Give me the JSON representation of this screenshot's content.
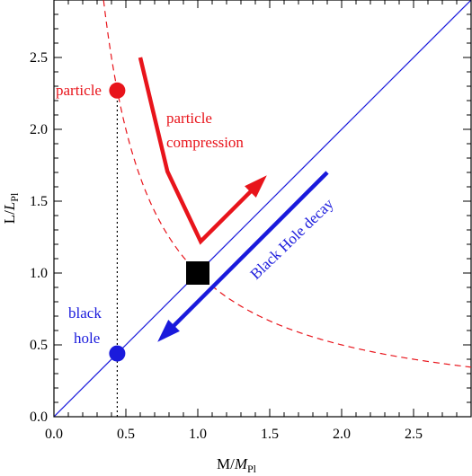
{
  "chart_data": {
    "type": "line",
    "title": "",
    "xlabel": {
      "main": "M/",
      "italic": "M",
      "sub": "Pl"
    },
    "ylabel": {
      "main": "L/",
      "italic": "L",
      "sub": "Pl"
    },
    "xlim": [
      0,
      2.9
    ],
    "ylim": [
      0,
      2.9
    ],
    "x_ticks": [
      "0.0",
      "0.5",
      "1.0",
      "1.5",
      "2.0",
      "2.5"
    ],
    "y_ticks": [
      "0.0",
      "0.5",
      "1.0",
      "1.5",
      "2.0",
      "2.5"
    ],
    "x_tick_values": [
      0,
      0.5,
      1.0,
      1.5,
      2.0,
      2.5
    ],
    "y_tick_values": [
      0,
      0.5,
      1.0,
      1.5,
      2.0,
      2.5
    ],
    "series": [
      {
        "relation": "L = M",
        "style": "solid",
        "color": "#1a1adc",
        "x_range": [
          0,
          2.9
        ]
      },
      {
        "relation": "L = 1/M",
        "style": "dashed",
        "color": "#e8141b",
        "x_range": [
          0.345,
          2.9
        ]
      }
    ],
    "points": [
      {
        "label": "particle",
        "x": 0.44,
        "y": 2.27,
        "color": "#e8141b",
        "shape": "circle"
      },
      {
        "label": "black hole",
        "x": 0.44,
        "y": 0.44,
        "color": "#1a1adc",
        "shape": "circle"
      },
      {
        "label": "",
        "x": 1.0,
        "y": 1.0,
        "color": "#000000",
        "shape": "square"
      }
    ],
    "vertical_marker": {
      "x": 0.44,
      "y_range": [
        0,
        2.27
      ],
      "style": "dotted"
    },
    "annotations": {
      "particle_label": "particle",
      "particle_compression_line1": "particle",
      "particle_compression_line2": "compression",
      "black_hole_line1": "black",
      "black_hole_line2": "hole",
      "black_hole_decay": "Black Hole decay"
    },
    "arrows": [
      {
        "name": "particle-compression",
        "color": "#e8141b",
        "from": [
          0.6,
          2.5
        ],
        "via": [
          1.02,
          1.22
        ],
        "to": [
          1.48,
          1.68
        ]
      },
      {
        "name": "black-hole-decay",
        "color": "#1a1adc",
        "from": [
          1.9,
          1.7
        ],
        "to": [
          0.72,
          0.52
        ]
      }
    ],
    "grid": false,
    "legend": "none"
  }
}
